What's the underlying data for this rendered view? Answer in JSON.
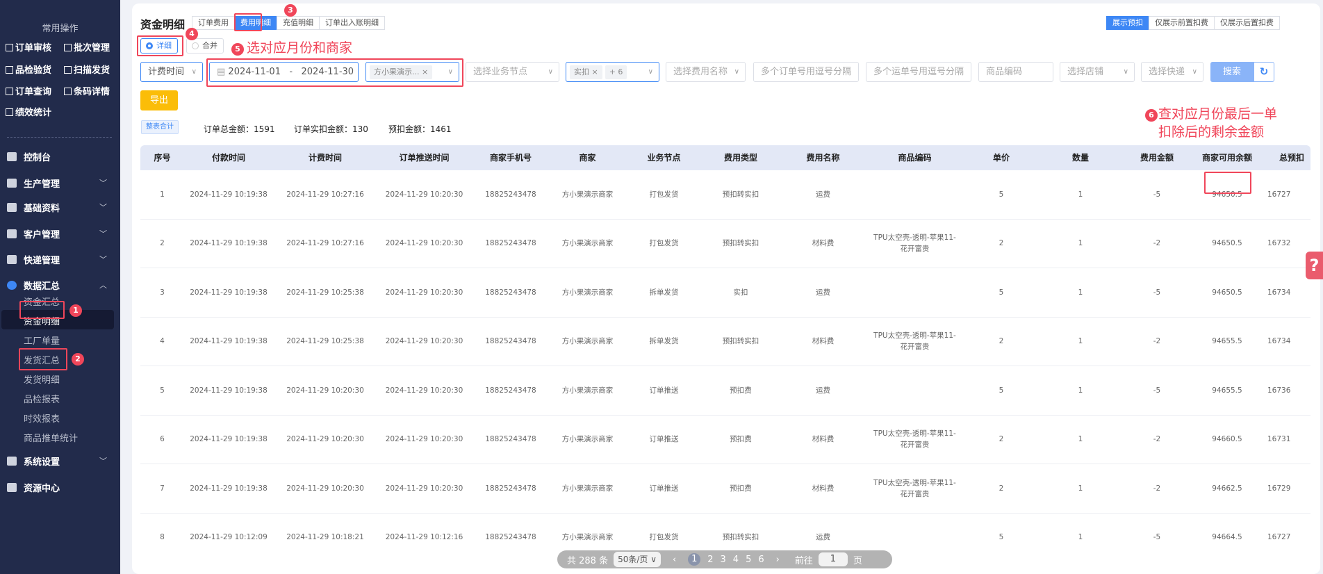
{
  "sidebar": {
    "quick_title": "常用操作",
    "quick": [
      "订单审核",
      "批次管理",
      "品检验货",
      "扫描发货",
      "订单查询",
      "条码详情",
      "绩效统计"
    ],
    "nav": [
      {
        "label": "控制台",
        "icon": "dashboard-icon"
      },
      {
        "label": "生产管理",
        "icon": "production-icon"
      },
      {
        "label": "基础资料",
        "icon": "basic-data-icon"
      },
      {
        "label": "客户管理",
        "icon": "customer-icon"
      },
      {
        "label": "快递管理",
        "icon": "express-icon"
      },
      {
        "label": "数据汇总",
        "icon": "pie-chart-icon",
        "expanded": true
      },
      {
        "label": "系统设置",
        "icon": "settings-icon"
      },
      {
        "label": "资源中心",
        "icon": "resource-icon"
      }
    ],
    "sub": [
      "资金汇总",
      "资金明细",
      "工厂单量",
      "发货汇总",
      "发货明细",
      "品检报表",
      "时效报表",
      "商品推单统计"
    ],
    "active_sub": "资金明细"
  },
  "header": {
    "title": "资金明细",
    "tabs": [
      "订单费用",
      "费用明细",
      "充值明细",
      "订单出入账明细"
    ],
    "active_tab": "费用明细",
    "right_tabs": [
      "展示预扣",
      "仅展示前置扣费",
      "仅展示后置扣费"
    ],
    "active_right_tab": "展示预扣"
  },
  "mode": {
    "options": [
      "详细",
      "合并"
    ],
    "selected": "详细"
  },
  "filters": {
    "time_type": "计费时间",
    "date_start": "2024-11-01",
    "date_sep": "-",
    "date_end": "2024-11-30",
    "merchant_tag": "方小果演示...",
    "business_node_placeholder": "选择业务节点",
    "fee_type_tag": "实扣",
    "fee_type_more": "+ 6",
    "fee_name_placeholder": "选择费用名称",
    "orders_placeholder": "多个订单号用逗号分隔",
    "waybills_placeholder": "多个运单号用逗号分隔",
    "sku_placeholder": "商品编码",
    "shop_placeholder": "选择店铺",
    "express_placeholder": "选择快递",
    "search_label": "搜索",
    "export_label": "导出"
  },
  "summary": {
    "badge": "整表合计",
    "order_total": "订单总金额：1591",
    "order_actual": "订单实扣金额：130",
    "prededuct": "预扣金额：1461"
  },
  "table": {
    "columns": [
      "序号",
      "付款时间",
      "计费时间",
      "订单推送时间",
      "商家手机号",
      "商家",
      "业务节点",
      "费用类型",
      "费用名称",
      "商品编码",
      "单价",
      "数量",
      "费用金额",
      "商家可用余额",
      "总预扣"
    ],
    "rows": [
      [
        "1",
        "2024-11-29 10:19:38",
        "2024-11-29 10:27:16",
        "2024-11-29 10:20:30",
        "18825243478",
        "方小果演示商家",
        "打包发货",
        "预扣转实扣",
        "运费",
        "",
        "5",
        "1",
        "-5",
        "94650.5",
        "16727"
      ],
      [
        "2",
        "2024-11-29 10:19:38",
        "2024-11-29 10:27:16",
        "2024-11-29 10:20:30",
        "18825243478",
        "方小果演示商家",
        "打包发货",
        "预扣转实扣",
        "材料费",
        "TPU太空壳-透明-苹果11-花开富贵",
        "2",
        "1",
        "-2",
        "94650.5",
        "16732"
      ],
      [
        "3",
        "2024-11-29 10:19:38",
        "2024-11-29 10:25:38",
        "2024-11-29 10:20:30",
        "18825243478",
        "方小果演示商家",
        "拆单发货",
        "实扣",
        "运费",
        "",
        "5",
        "1",
        "-5",
        "94650.5",
        "16734"
      ],
      [
        "4",
        "2024-11-29 10:19:38",
        "2024-11-29 10:25:38",
        "2024-11-29 10:20:30",
        "18825243478",
        "方小果演示商家",
        "拆单发货",
        "预扣转实扣",
        "材料费",
        "TPU太空壳-透明-苹果11-花开富贵",
        "2",
        "1",
        "-2",
        "94655.5",
        "16734"
      ],
      [
        "5",
        "2024-11-29 10:19:38",
        "2024-11-29 10:20:30",
        "2024-11-29 10:20:30",
        "18825243478",
        "方小果演示商家",
        "订单推送",
        "预扣费",
        "运费",
        "",
        "5",
        "1",
        "-5",
        "94655.5",
        "16736"
      ],
      [
        "6",
        "2024-11-29 10:19:38",
        "2024-11-29 10:20:30",
        "2024-11-29 10:20:30",
        "18825243478",
        "方小果演示商家",
        "订单推送",
        "预扣费",
        "材料费",
        "TPU太空壳-透明-苹果11-花开富贵",
        "2",
        "1",
        "-2",
        "94660.5",
        "16731"
      ],
      [
        "7",
        "2024-11-29 10:19:38",
        "2024-11-29 10:20:30",
        "2024-11-29 10:20:30",
        "18825243478",
        "方小果演示商家",
        "订单推送",
        "预扣费",
        "材料费",
        "TPU太空壳-透明-苹果11-花开富贵",
        "2",
        "1",
        "-2",
        "94662.5",
        "16729"
      ],
      [
        "8",
        "2024-11-29 10:12:09",
        "2024-11-29 10:18:21",
        "2024-11-29 10:12:16",
        "18825243478",
        "方小果演示商家",
        "打包发货",
        "预扣转实扣",
        "运费",
        "",
        "5",
        "1",
        "-5",
        "94664.5",
        "16727"
      ]
    ]
  },
  "pagination": {
    "total": "共 288 条",
    "page_size": "50条/页",
    "pages": [
      "1",
      "2",
      "3",
      "4",
      "5",
      "6"
    ],
    "current": "1",
    "goto_label": "前往",
    "goto_value": "1",
    "page_unit": "页"
  },
  "annotations": {
    "n1": "1",
    "n2": "2",
    "n3": "3",
    "n4": "4",
    "n5": "5",
    "n6": "6",
    "note5": "选对应月份和商家",
    "note6_line1": "查对应月份最后一单",
    "note6_line2": "扣除后的剩余金额"
  },
  "colors": {
    "accent": "#3d87f5",
    "sidebar": "#222b4b",
    "annotation": "#f0465a",
    "export": "#fbbd08"
  }
}
